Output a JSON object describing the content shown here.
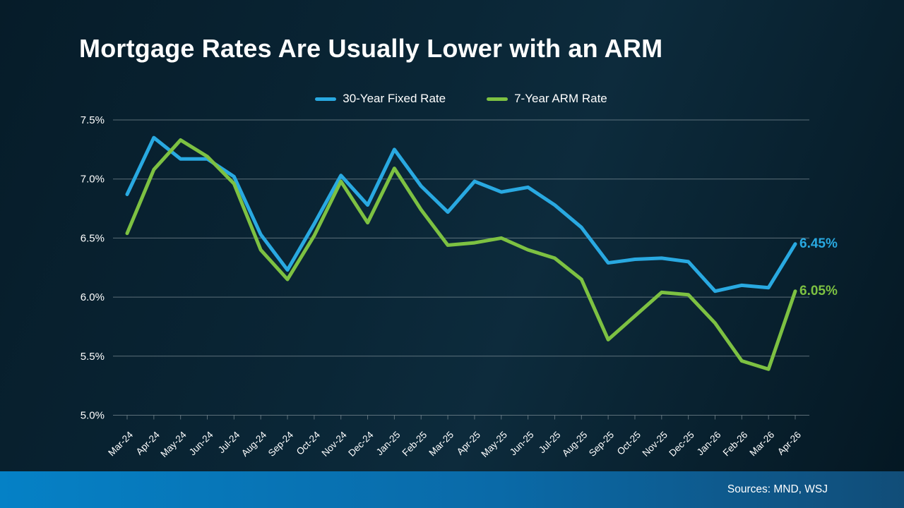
{
  "slide": {
    "title": "Mortgage Rates Are Usually Lower with an ARM",
    "source_note": "Sources: MND, WSJ"
  },
  "chart_data": {
    "type": "line",
    "title": "Mortgage Rates Are Usually Lower with an ARM",
    "xlabel": "",
    "ylabel": "",
    "ylim": [
      5.0,
      7.5
    ],
    "y_tick_labels": [
      "7.5%",
      "7.0%",
      "6.5%",
      "6.0%",
      "5.5%",
      "5.0%"
    ],
    "y_tick_values": [
      7.5,
      7.0,
      6.5,
      6.0,
      5.5,
      5.0
    ],
    "grid": true,
    "legend_position": "top-center",
    "categories": [
      "Mar-24",
      "Apr-24",
      "May-24",
      "Jun-24",
      "Jul-24",
      "Aug-24",
      "Sep-24",
      "Oct-24",
      "Nov-24",
      "Dec-24",
      "Jan-25",
      "Feb-25",
      "Mar-25",
      "Apr-25",
      "May-25",
      "Jun-25",
      "Jul-25",
      "Aug-25",
      "Sep-25",
      "Oct-25",
      "Nov-25",
      "Dec-25",
      "Jan-26",
      "Feb-26",
      "Mar-26",
      "Apr-26"
    ],
    "series": [
      {
        "name": "30-Year Fixed Rate",
        "color": "#29a9e1",
        "end_label": "6.45%",
        "values": [
          6.87,
          7.35,
          7.17,
          7.17,
          7.02,
          6.53,
          6.23,
          6.62,
          7.03,
          6.78,
          7.25,
          6.94,
          6.72,
          6.98,
          6.89,
          6.93,
          6.78,
          6.59,
          6.29,
          6.32,
          6.33,
          6.3,
          6.05,
          6.1,
          6.08,
          6.45
        ]
      },
      {
        "name": "7-Year ARM Rate",
        "color": "#7dc142",
        "end_label": "6.05%",
        "values": [
          6.54,
          7.08,
          7.33,
          7.19,
          6.96,
          6.4,
          6.15,
          6.52,
          6.98,
          6.63,
          7.09,
          6.74,
          6.44,
          6.46,
          6.5,
          6.4,
          6.33,
          6.15,
          5.64,
          5.84,
          6.04,
          6.02,
          5.78,
          5.46,
          5.39,
          6.05
        ]
      }
    ],
    "colors": {
      "background_top": "#0a2636",
      "background_bottom": "#041722",
      "gridline": "#94a2a9",
      "axis_text": "#ffffff",
      "bottom_bar_left": "#0581c6",
      "bottom_bar_right": "#114d78"
    }
  }
}
